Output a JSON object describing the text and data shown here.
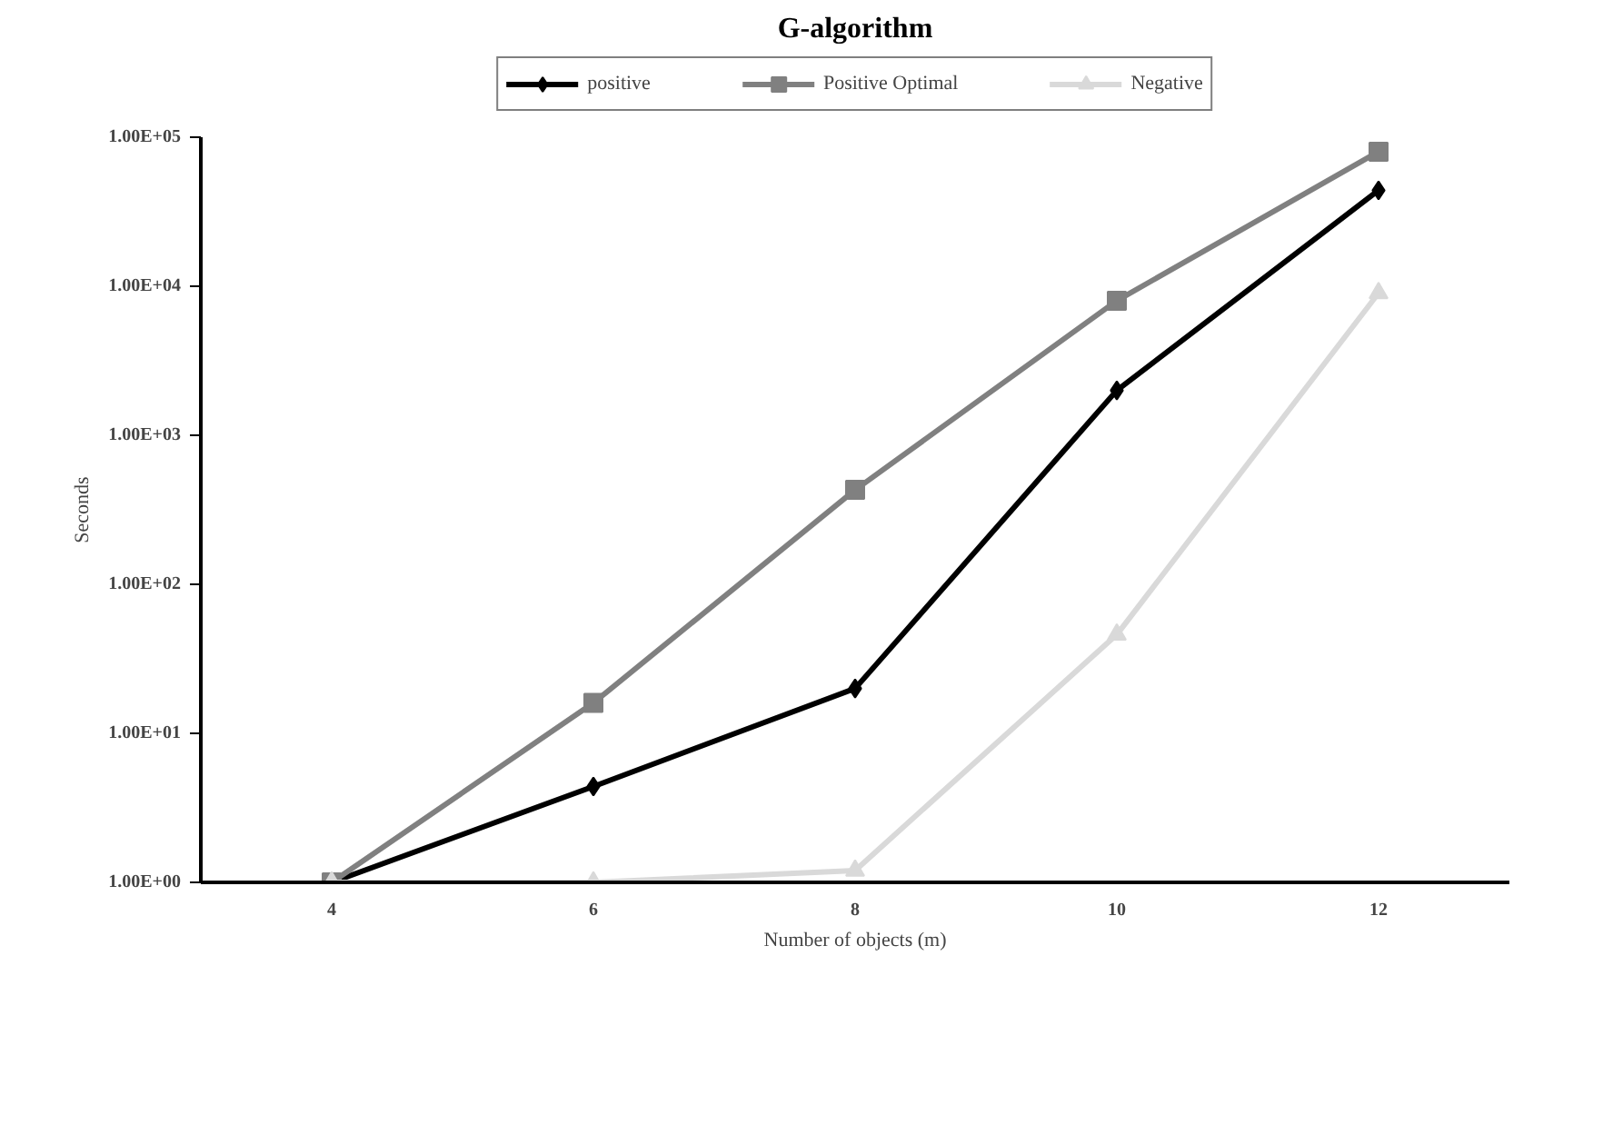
{
  "chart_data": {
    "type": "line",
    "title": "G-algorithm",
    "xlabel": "Number of objects (m)",
    "ylabel": "Seconds",
    "categories": [
      "4",
      "6",
      "8",
      "10",
      "12"
    ],
    "series": [
      {
        "name": "positive",
        "color": "#000000",
        "marker": "diamond",
        "values": [
          1,
          4.4,
          20,
          2000,
          44000
        ]
      },
      {
        "name": "Positive Optimal",
        "color": "#808080",
        "marker": "square",
        "values": [
          1,
          16,
          430,
          8000,
          80000
        ]
      },
      {
        "name": "Negative",
        "color": "#d9d9d9",
        "marker": "triangle",
        "values": [
          1,
          1,
          1.2,
          46,
          9000
        ]
      }
    ],
    "log": "y",
    "ylim": [
      1,
      100000
    ],
    "yticks": [
      {
        "value": 1,
        "label": "1.00E+00"
      },
      {
        "value": 10,
        "label": "1.00E+01"
      },
      {
        "value": 100,
        "label": "1.00E+02"
      },
      {
        "value": 1000,
        "label": "1.00E+03"
      },
      {
        "value": 10000,
        "label": "1.00E+04"
      },
      {
        "value": 100000,
        "label": "1.00E+05"
      }
    ],
    "grid": false,
    "legend": "top",
    "line_style": "solid"
  }
}
